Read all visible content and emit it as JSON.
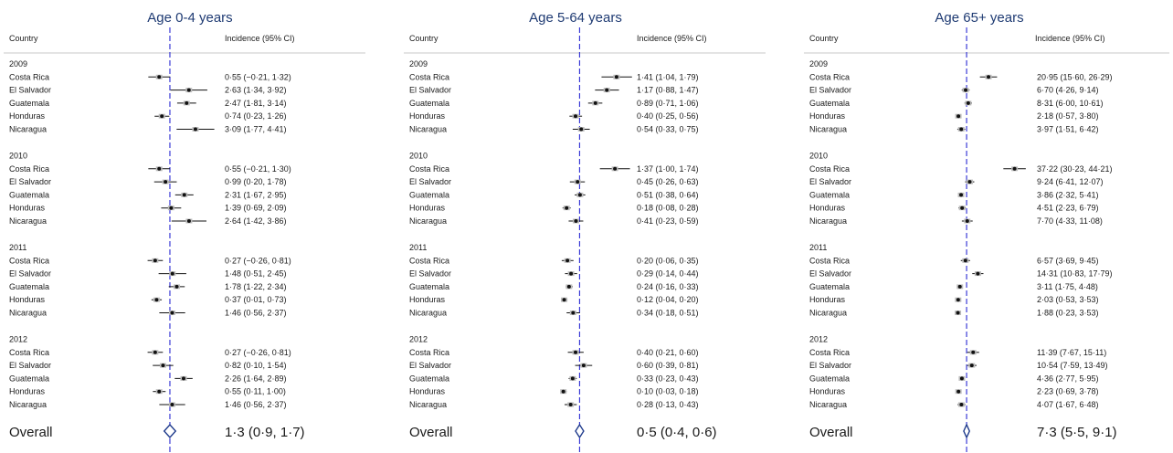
{
  "chart_data": [
    {
      "type": "forest",
      "title": "Age 0-4 years",
      "col_country": "Country",
      "col_incidence": "Incidence (95% CI)",
      "overall_label": "Overall",
      "years": [
        {
          "year": "2009",
          "rows": [
            {
              "country": "Costa Rica",
              "value": 0.55,
              "low": -0.21,
              "high": 1.32,
              "label": "0·55 (−0·21, 1·32)"
            },
            {
              "country": "El Salvador",
              "value": 2.63,
              "low": 1.34,
              "high": 3.92,
              "label": "2·63 (1·34, 3·92)"
            },
            {
              "country": "Guatemala",
              "value": 2.47,
              "low": 1.81,
              "high": 3.14,
              "label": "2·47 (1·81, 3·14)"
            },
            {
              "country": "Honduras",
              "value": 0.74,
              "low": 0.23,
              "high": 1.26,
              "label": "0·74 (0·23, 1·26)"
            },
            {
              "country": "Nicaragua",
              "value": 3.09,
              "low": 1.77,
              "high": 4.41,
              "label": "3·09 (1·77, 4·41)"
            }
          ]
        },
        {
          "year": "2010",
          "rows": [
            {
              "country": "Costa Rica",
              "value": 0.55,
              "low": -0.21,
              "high": 1.3,
              "label": "0·55 (−0·21, 1·30)"
            },
            {
              "country": "El Salvador",
              "value": 0.99,
              "low": 0.2,
              "high": 1.78,
              "label": "0·99 (0·20, 1·78)"
            },
            {
              "country": "Guatemala",
              "value": 2.31,
              "low": 1.67,
              "high": 2.95,
              "label": "2·31 (1·67, 2·95)"
            },
            {
              "country": "Honduras",
              "value": 1.39,
              "low": 0.69,
              "high": 2.09,
              "label": "1·39 (0·69, 2·09)"
            },
            {
              "country": "Nicaragua",
              "value": 2.64,
              "low": 1.42,
              "high": 3.86,
              "label": "2·64 (1·42, 3·86)"
            }
          ]
        },
        {
          "year": "2011",
          "rows": [
            {
              "country": "Costa Rica",
              "value": 0.27,
              "low": -0.26,
              "high": 0.81,
              "label": "0·27 (−0·26, 0·81)"
            },
            {
              "country": "El Salvador",
              "value": 1.48,
              "low": 0.51,
              "high": 2.45,
              "label": "1·48 (0·51, 2·45)"
            },
            {
              "country": "Guatemala",
              "value": 1.78,
              "low": 1.22,
              "high": 2.34,
              "label": "1·78 (1·22, 2·34)"
            },
            {
              "country": "Honduras",
              "value": 0.37,
              "low": 0.01,
              "high": 0.73,
              "label": "0·37 (0·01, 0·73)"
            },
            {
              "country": "Nicaragua",
              "value": 1.46,
              "low": 0.56,
              "high": 2.37,
              "label": "1·46 (0·56, 2·37)"
            }
          ]
        },
        {
          "year": "2012",
          "rows": [
            {
              "country": "Costa Rica",
              "value": 0.27,
              "low": -0.26,
              "high": 0.81,
              "label": "0·27 (−0·26, 0·81)"
            },
            {
              "country": "El Salvador",
              "value": 0.82,
              "low": 0.1,
              "high": 1.54,
              "label": "0·82 (0·10, 1·54)"
            },
            {
              "country": "Guatemala",
              "value": 2.26,
              "low": 1.64,
              "high": 2.89,
              "label": "2·26 (1·64, 2·89)"
            },
            {
              "country": "Honduras",
              "value": 0.55,
              "low": 0.11,
              "high": 1.0,
              "label": "0·55 (0·11, 1·00)"
            },
            {
              "country": "Nicaragua",
              "value": 1.46,
              "low": 0.56,
              "high": 2.37,
              "label": "1·46 (0·56, 2·37)"
            }
          ]
        }
      ],
      "overall": {
        "value": 1.3,
        "low": 0.9,
        "high": 1.7,
        "label": "1·3 (0·9, 1·7)"
      },
      "xlim": [
        -1.0,
        4.5
      ]
    },
    {
      "type": "forest",
      "title": "Age 5-64 years",
      "col_country": "Country",
      "col_incidence": "Incidence (95% CI)",
      "overall_label": "Overall",
      "years": [
        {
          "year": "2009",
          "rows": [
            {
              "country": "Costa Rica",
              "value": 1.41,
              "low": 1.04,
              "high": 1.79,
              "label": "1·41 (1·04, 1·79)"
            },
            {
              "country": "El Salvador",
              "value": 1.17,
              "low": 0.88,
              "high": 1.47,
              "label": "1·17 (0·88, 1·47)"
            },
            {
              "country": "Guatemala",
              "value": 0.89,
              "low": 0.71,
              "high": 1.06,
              "label": "0·89 (0·71, 1·06)"
            },
            {
              "country": "Honduras",
              "value": 0.4,
              "low": 0.25,
              "high": 0.56,
              "label": "0·40 (0·25, 0·56)"
            },
            {
              "country": "Nicaragua",
              "value": 0.54,
              "low": 0.33,
              "high": 0.75,
              "label": "0·54 (0·33, 0·75)"
            }
          ]
        },
        {
          "year": "2010",
          "rows": [
            {
              "country": "Costa Rica",
              "value": 1.37,
              "low": 1.0,
              "high": 1.74,
              "label": "1·37 (1·00, 1·74)"
            },
            {
              "country": "El Salvador",
              "value": 0.45,
              "low": 0.26,
              "high": 0.63,
              "label": "0·45 (0·26, 0·63)"
            },
            {
              "country": "Guatemala",
              "value": 0.51,
              "low": 0.38,
              "high": 0.64,
              "label": "0·51 (0·38, 0·64)"
            },
            {
              "country": "Honduras",
              "value": 0.18,
              "low": 0.08,
              "high": 0.28,
              "label": "0·18 (0·08, 0·28)"
            },
            {
              "country": "Nicaragua",
              "value": 0.41,
              "low": 0.23,
              "high": 0.59,
              "label": "0·41 (0·23, 0·59)"
            }
          ]
        },
        {
          "year": "2011",
          "rows": [
            {
              "country": "Costa Rica",
              "value": 0.2,
              "low": 0.06,
              "high": 0.35,
              "label": "0·20 (0·06, 0·35)"
            },
            {
              "country": "El Salvador",
              "value": 0.29,
              "low": 0.14,
              "high": 0.44,
              "label": "0·29 (0·14, 0·44)"
            },
            {
              "country": "Guatemala",
              "value": 0.24,
              "low": 0.16,
              "high": 0.33,
              "label": "0·24 (0·16, 0·33)"
            },
            {
              "country": "Honduras",
              "value": 0.12,
              "low": 0.04,
              "high": 0.2,
              "label": "0·12 (0·04, 0·20)"
            },
            {
              "country": "Nicaragua",
              "value": 0.34,
              "low": 0.18,
              "high": 0.51,
              "label": "0·34 (0·18, 0·51)"
            }
          ]
        },
        {
          "year": "2012",
          "rows": [
            {
              "country": "Costa Rica",
              "value": 0.4,
              "low": 0.21,
              "high": 0.6,
              "label": "0·40 (0·21, 0·60)"
            },
            {
              "country": "El Salvador",
              "value": 0.6,
              "low": 0.39,
              "high": 0.81,
              "label": "0·60 (0·39, 0·81)"
            },
            {
              "country": "Guatemala",
              "value": 0.33,
              "low": 0.23,
              "high": 0.43,
              "label": "0·33 (0·23, 0·43)"
            },
            {
              "country": "Honduras",
              "value": 0.1,
              "low": 0.03,
              "high": 0.18,
              "label": "0·10 (0·03, 0·18)"
            },
            {
              "country": "Nicaragua",
              "value": 0.28,
              "low": 0.13,
              "high": 0.43,
              "label": "0·28 (0·13, 0·43)"
            }
          ]
        }
      ],
      "overall": {
        "value": 0.5,
        "low": 0.4,
        "high": 0.6,
        "label": "0·5 (0·4, 0·6)"
      },
      "xlim": [
        -0.05,
        1.75
      ]
    },
    {
      "type": "forest",
      "title": "Age 65+ years",
      "col_country": "Country",
      "col_incidence": "Incidence (95% CI)",
      "overall_label": "Overall",
      "years": [
        {
          "year": "2009",
          "rows": [
            {
              "country": "Costa Rica",
              "value": 20.95,
              "low": 15.6,
              "high": 26.29,
              "label": "20·95 (15·60, 26·29)"
            },
            {
              "country": "El Salvador",
              "value": 6.7,
              "low": 4.26,
              "high": 9.14,
              "label": "6·70 (4·26, 9·14)"
            },
            {
              "country": "Guatemala",
              "value": 8.31,
              "low": 6.0,
              "high": 10.61,
              "label": "8·31 (6·00, 10·61)"
            },
            {
              "country": "Honduras",
              "value": 2.18,
              "low": 0.57,
              "high": 3.8,
              "label": "2·18 (0·57, 3·80)"
            },
            {
              "country": "Nicaragua",
              "value": 3.97,
              "low": 1.51,
              "high": 6.42,
              "label": "3·97 (1·51, 6·42)"
            }
          ]
        },
        {
          "year": "2010",
          "rows": [
            {
              "country": "Costa Rica",
              "value": 37.22,
              "low": 30.23,
              "high": 44.21,
              "label": "37·22 (30·23, 44·21)"
            },
            {
              "country": "El Salvador",
              "value": 9.24,
              "low": 6.41,
              "high": 12.07,
              "label": "9·24 (6·41, 12·07)"
            },
            {
              "country": "Guatemala",
              "value": 3.86,
              "low": 2.32,
              "high": 5.41,
              "label": "3·86 (2·32, 5·41)"
            },
            {
              "country": "Honduras",
              "value": 4.51,
              "low": 2.23,
              "high": 6.79,
              "label": "4·51 (2·23, 6·79)"
            },
            {
              "country": "Nicaragua",
              "value": 7.7,
              "low": 4.33,
              "high": 11.08,
              "label": "7·70 (4·33, 11·08)"
            }
          ]
        },
        {
          "year": "2011",
          "rows": [
            {
              "country": "Costa Rica",
              "value": 6.57,
              "low": 3.69,
              "high": 9.45,
              "label": "6·57 (3·69, 9·45)"
            },
            {
              "country": "El Salvador",
              "value": 14.31,
              "low": 10.83,
              "high": 17.79,
              "label": "14·31 (10·83, 17·79)"
            },
            {
              "country": "Guatemala",
              "value": 3.11,
              "low": 1.75,
              "high": 4.48,
              "label": "3·11 (1·75, 4·48)"
            },
            {
              "country": "Honduras",
              "value": 2.03,
              "low": 0.53,
              "high": 3.53,
              "label": "2·03 (0·53, 3·53)"
            },
            {
              "country": "Nicaragua",
              "value": 1.88,
              "low": 0.23,
              "high": 3.53,
              "label": "1·88 (0·23, 3·53)"
            }
          ]
        },
        {
          "year": "2012",
          "rows": [
            {
              "country": "Costa Rica",
              "value": 11.39,
              "low": 7.67,
              "high": 15.11,
              "label": "11·39 (7·67, 15·11)"
            },
            {
              "country": "El Salvador",
              "value": 10.54,
              "low": 7.59,
              "high": 13.49,
              "label": "10·54 (7·59, 13·49)"
            },
            {
              "country": "Guatemala",
              "value": 4.36,
              "low": 2.77,
              "high": 5.95,
              "label": "4·36 (2·77, 5·95)"
            },
            {
              "country": "Honduras",
              "value": 2.23,
              "low": 0.69,
              "high": 3.78,
              "label": "2·23 (0·69, 3·78)"
            },
            {
              "country": "Nicaragua",
              "value": 4.07,
              "low": 1.67,
              "high": 6.48,
              "label": "4·07 (1·67, 6·48)"
            }
          ]
        }
      ],
      "overall": {
        "value": 7.3,
        "low": 5.5,
        "high": 9.1,
        "label": "7·3 (5·5, 9·1)"
      },
      "xlim": [
        -3.0,
        46.0
      ]
    }
  ],
  "colors": {
    "title": "#1f3b73",
    "reference_line": "#3b3bd6",
    "diamond": "#1f3b8c",
    "marker": "#111111",
    "divider": "#c8c8c8"
  }
}
